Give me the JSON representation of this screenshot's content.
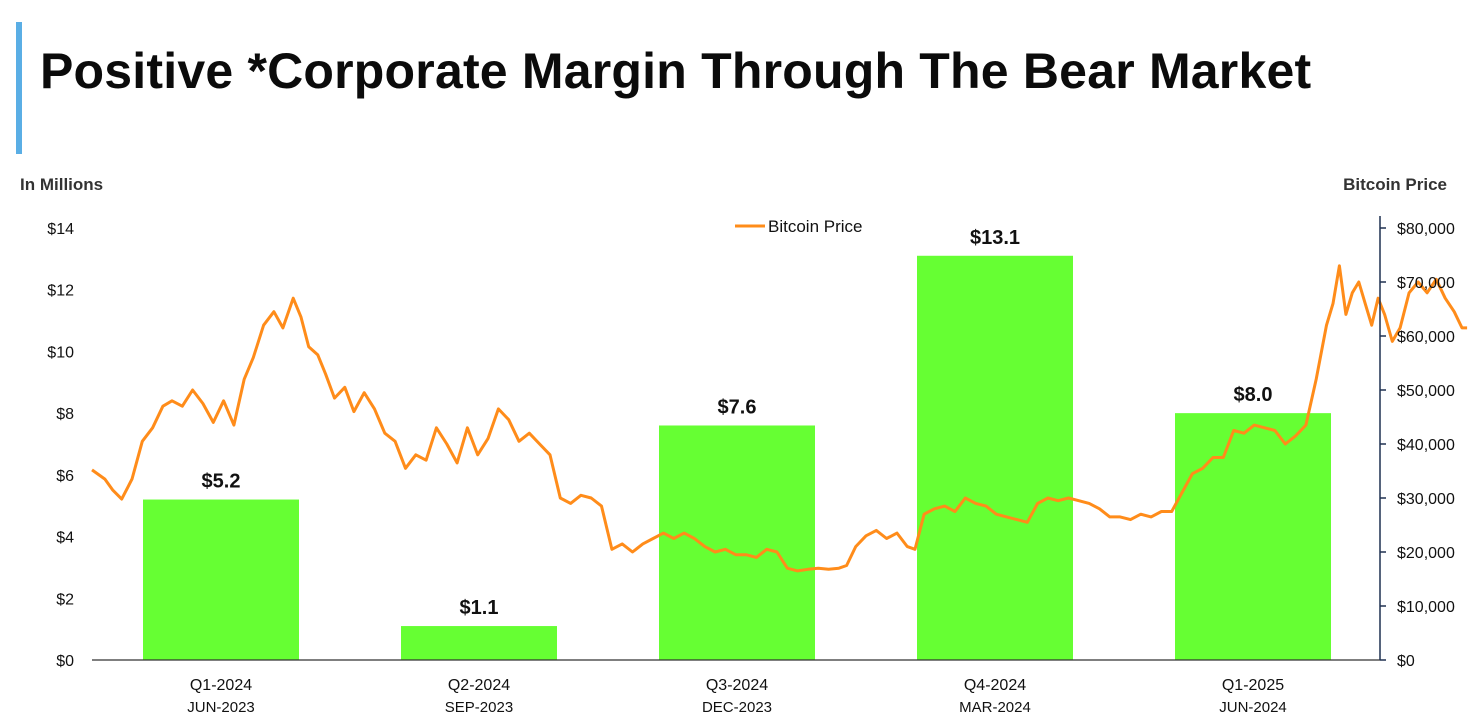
{
  "header": {
    "title": "Positive *Corporate Margin Through The Bear Market"
  },
  "colors": {
    "accent_bar": "#5aaee5",
    "bars": "#66ff33",
    "line": "#ff8c1a",
    "right_axis": "#1f3050"
  },
  "chart_data": {
    "type": "bar",
    "title": "Positive *Corporate Margin Through The Bear Market",
    "ylabel": "In Millions",
    "y2label": "Bitcoin Price",
    "ylim": [
      0,
      14
    ],
    "y2lim": [
      0,
      80000
    ],
    "y_ticks": [
      "$0",
      "$2",
      "$4",
      "$6",
      "$8",
      "$10",
      "$12",
      "$14"
    ],
    "y2_ticks": [
      "$0",
      "$10,000",
      "$20,000",
      "$30,000",
      "$40,000",
      "$50,000",
      "$60,000",
      "$70,000",
      "$80,000"
    ],
    "categories": [
      "Q1-2024",
      "Q2-2024",
      "Q3-2024",
      "Q4-2024",
      "Q1-2025"
    ],
    "subcategories": [
      "JUN-2023",
      "SEP-2023",
      "DEC-2023",
      "MAR-2024",
      "JUN-2024"
    ],
    "values": [
      5.2,
      1.1,
      7.6,
      13.1,
      8.0
    ],
    "value_labels": [
      "$5.2",
      "$1.1",
      "$7.6",
      "$13.1",
      "$8.0"
    ],
    "legend": {
      "position": "top-center",
      "entries": [
        "Bitcoin Price"
      ]
    },
    "grid": false,
    "line_series": {
      "name": "Bitcoin Price",
      "axis": "right",
      "points": [
        [
          0.0,
          35200
        ],
        [
          0.01,
          33500
        ],
        [
          0.016,
          31500
        ],
        [
          0.023,
          29800
        ],
        [
          0.031,
          33500
        ],
        [
          0.039,
          40500
        ],
        [
          0.047,
          43000
        ],
        [
          0.055,
          47000
        ],
        [
          0.062,
          48000
        ],
        [
          0.07,
          47000
        ],
        [
          0.078,
          50000
        ],
        [
          0.086,
          47500
        ],
        [
          0.094,
          44000
        ],
        [
          0.102,
          48000
        ],
        [
          0.11,
          43500
        ],
        [
          0.118,
          52000
        ],
        [
          0.125,
          56000
        ],
        [
          0.133,
          62000
        ],
        [
          0.141,
          64500
        ],
        [
          0.148,
          61500
        ],
        [
          0.156,
          67000
        ],
        [
          0.162,
          63500
        ],
        [
          0.168,
          58000
        ],
        [
          0.175,
          56500
        ],
        [
          0.181,
          53000
        ],
        [
          0.188,
          48500
        ],
        [
          0.196,
          50500
        ],
        [
          0.203,
          46000
        ],
        [
          0.211,
          49500
        ],
        [
          0.219,
          46500
        ],
        [
          0.227,
          42000
        ],
        [
          0.235,
          40500
        ],
        [
          0.243,
          35500
        ],
        [
          0.251,
          38000
        ],
        [
          0.259,
          37000
        ],
        [
          0.267,
          43000
        ],
        [
          0.275,
          40000
        ],
        [
          0.283,
          36500
        ],
        [
          0.291,
          43000
        ],
        [
          0.299,
          38000
        ],
        [
          0.307,
          41000
        ],
        [
          0.315,
          46500
        ],
        [
          0.323,
          44500
        ],
        [
          0.331,
          40500
        ],
        [
          0.339,
          42000
        ],
        [
          0.347,
          40000
        ],
        [
          0.355,
          38000
        ],
        [
          0.363,
          30000
        ],
        [
          0.371,
          29000
        ],
        [
          0.379,
          30500
        ],
        [
          0.387,
          30000
        ],
        [
          0.395,
          28500
        ],
        [
          0.403,
          20500
        ],
        [
          0.411,
          21500
        ],
        [
          0.419,
          20000
        ],
        [
          0.427,
          21500
        ],
        [
          0.435,
          22500
        ],
        [
          0.443,
          23500
        ],
        [
          0.451,
          22500
        ],
        [
          0.459,
          23500
        ],
        [
          0.467,
          22500
        ],
        [
          0.475,
          21000
        ],
        [
          0.483,
          20000
        ],
        [
          0.491,
          20500
        ],
        [
          0.499,
          19500
        ],
        [
          0.507,
          19500
        ],
        [
          0.515,
          19000
        ],
        [
          0.523,
          20500
        ],
        [
          0.531,
          20000
        ],
        [
          0.539,
          17000
        ],
        [
          0.547,
          16500
        ],
        [
          0.555,
          16800
        ],
        [
          0.563,
          17000
        ],
        [
          0.571,
          16800
        ],
        [
          0.579,
          17000
        ],
        [
          0.585,
          17500
        ],
        [
          0.592,
          21000
        ],
        [
          0.6,
          23000
        ],
        [
          0.608,
          24000
        ],
        [
          0.616,
          22500
        ],
        [
          0.624,
          23500
        ],
        [
          0.632,
          21000
        ],
        [
          0.638,
          20500
        ],
        [
          0.645,
          27000
        ],
        [
          0.653,
          28000
        ],
        [
          0.661,
          28500
        ],
        [
          0.669,
          27500
        ],
        [
          0.677,
          30000
        ],
        [
          0.685,
          29000
        ],
        [
          0.693,
          28500
        ],
        [
          0.701,
          27000
        ],
        [
          0.709,
          26500
        ],
        [
          0.717,
          26000
        ],
        [
          0.725,
          25500
        ],
        [
          0.733,
          29000
        ],
        [
          0.741,
          30000
        ],
        [
          0.749,
          29500
        ],
        [
          0.757,
          30000
        ],
        [
          0.765,
          29500
        ],
        [
          0.773,
          29000
        ],
        [
          0.781,
          28000
        ],
        [
          0.789,
          26500
        ],
        [
          0.797,
          26500
        ],
        [
          0.805,
          26000
        ],
        [
          0.813,
          27000
        ],
        [
          0.821,
          26500
        ],
        [
          0.829,
          27500
        ],
        [
          0.837,
          27500
        ],
        [
          0.845,
          31000
        ],
        [
          0.853,
          34500
        ],
        [
          0.861,
          35500
        ],
        [
          0.869,
          37500
        ],
        [
          0.877,
          37500
        ],
        [
          0.885,
          42500
        ],
        [
          0.893,
          42000
        ],
        [
          0.901,
          43500
        ],
        [
          0.909,
          43000
        ],
        [
          0.917,
          42500
        ],
        [
          0.925,
          40000
        ],
        [
          0.933,
          41500
        ],
        [
          0.941,
          43500
        ],
        [
          0.949,
          52000
        ],
        [
          0.957,
          62000
        ],
        [
          0.962,
          66000
        ],
        [
          0.967,
          73000
        ],
        [
          0.972,
          64000
        ],
        [
          0.977,
          68000
        ],
        [
          0.982,
          70000
        ],
        [
          0.987,
          66000
        ],
        [
          0.992,
          62000
        ],
        [
          0.997,
          67000
        ],
        [
          1.002,
          64000
        ],
        [
          1.008,
          59000
        ],
        [
          1.014,
          61500
        ],
        [
          1.021,
          68000
        ],
        [
          1.028,
          70000
        ],
        [
          1.035,
          68000
        ],
        [
          1.042,
          70500
        ],
        [
          1.049,
          67000
        ],
        [
          1.056,
          64500
        ],
        [
          1.062,
          61500
        ],
        [
          1.066,
          61500
        ]
      ]
    }
  }
}
